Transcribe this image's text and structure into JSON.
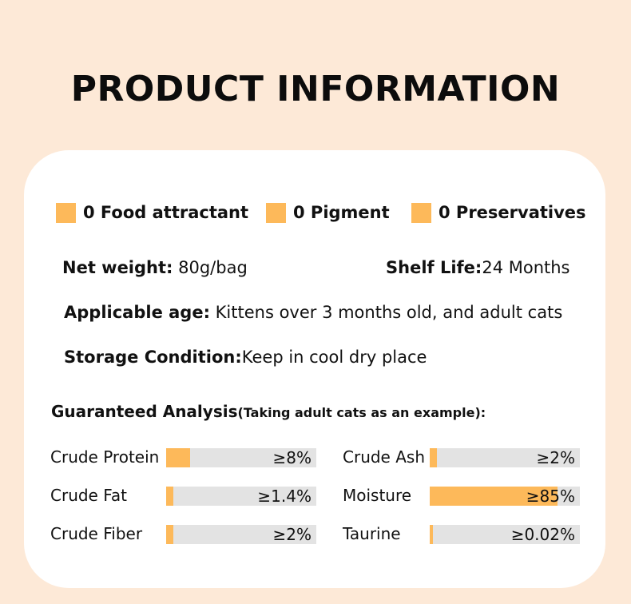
{
  "title": "PRODUCT INFORMATION",
  "tags": [
    "0 Food attractant",
    "0 Pigment",
    "0 Preservatives"
  ],
  "info": {
    "net_weight_label": "Net weight:",
    "net_weight_value": " 80g/bag",
    "shelf_life_label": "Shelf Life:",
    "shelf_life_value": "24 Months",
    "age_label": "Applicable age:",
    "age_value": " Kittens over 3 months old, and adult cats",
    "storage_label": "Storage Condition:",
    "storage_value": "Keep in cool dry place"
  },
  "analysis": {
    "heading": "Guaranteed Analysis",
    "subheading": "(Taking adult cats as an example):",
    "items": [
      {
        "name": "Crude Protein",
        "value": "≥8%",
        "fill": 0.16
      },
      {
        "name": "Crude Ash",
        "value": "≥2%",
        "fill": 0.05
      },
      {
        "name": "Crude Fat",
        "value": "≥1.4%",
        "fill": 0.05
      },
      {
        "name": "Moisture",
        "value": "≥85%",
        "fill": 0.85
      },
      {
        "name": "Crude Fiber",
        "value": "≥2%",
        "fill": 0.05
      },
      {
        "name": "Taurine",
        "value": "≥0.02%",
        "fill": 0.02
      }
    ]
  },
  "colors": {
    "accent": "#fdb95a",
    "background": "#fde9d7",
    "bar_track": "#e3e3e3"
  }
}
